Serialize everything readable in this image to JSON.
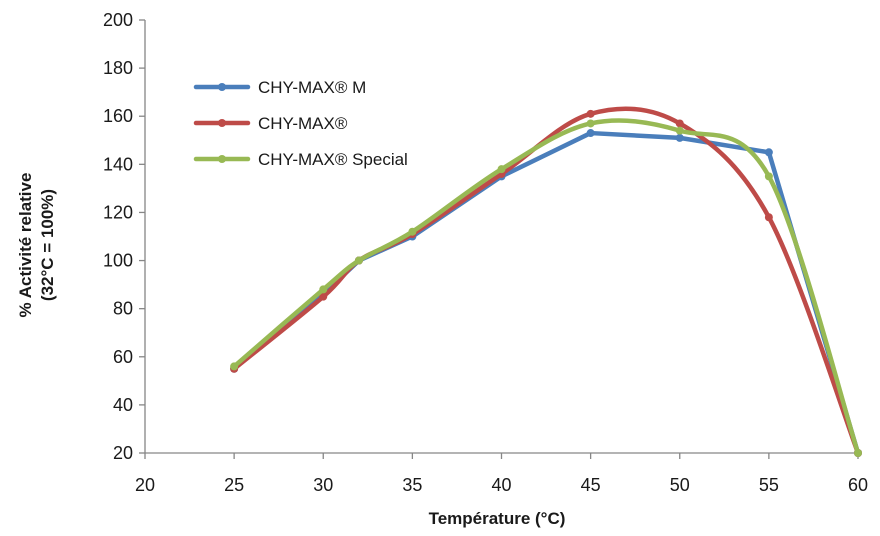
{
  "chart_data": {
    "type": "line",
    "title": "",
    "xlabel": "Température (°C)",
    "ylabel_line1": "% Activité relative",
    "ylabel_line2": "(32°C = 100%)",
    "xlim": [
      20,
      60
    ],
    "ylim": [
      20,
      200
    ],
    "x_ticks": [
      20,
      25,
      30,
      35,
      40,
      45,
      50,
      55,
      60
    ],
    "y_ticks": [
      20,
      40,
      60,
      80,
      100,
      120,
      140,
      160,
      180,
      200
    ],
    "grid": false,
    "legend_position": "top-left",
    "series": [
      {
        "name": "CHY-MAX® M",
        "color": "#4a7ebb",
        "smooth": false,
        "x": [
          25,
          30,
          32,
          35,
          40,
          45,
          50,
          55,
          60
        ],
        "y": [
          55,
          86,
          100,
          110,
          135,
          153,
          151,
          145,
          20
        ]
      },
      {
        "name": "CHY-MAX®",
        "color": "#be4b48",
        "smooth": true,
        "x": [
          25,
          30,
          32,
          35,
          40,
          45,
          50,
          55,
          60
        ],
        "y": [
          55,
          85,
          100,
          111,
          136,
          161,
          157,
          118,
          20
        ]
      },
      {
        "name": "CHY-MAX® Special",
        "color": "#98b954",
        "smooth": true,
        "x": [
          25,
          30,
          32,
          35,
          40,
          45,
          50,
          55,
          60
        ],
        "y": [
          56,
          88,
          100,
          112,
          138,
          157,
          154,
          135,
          20
        ]
      }
    ]
  }
}
